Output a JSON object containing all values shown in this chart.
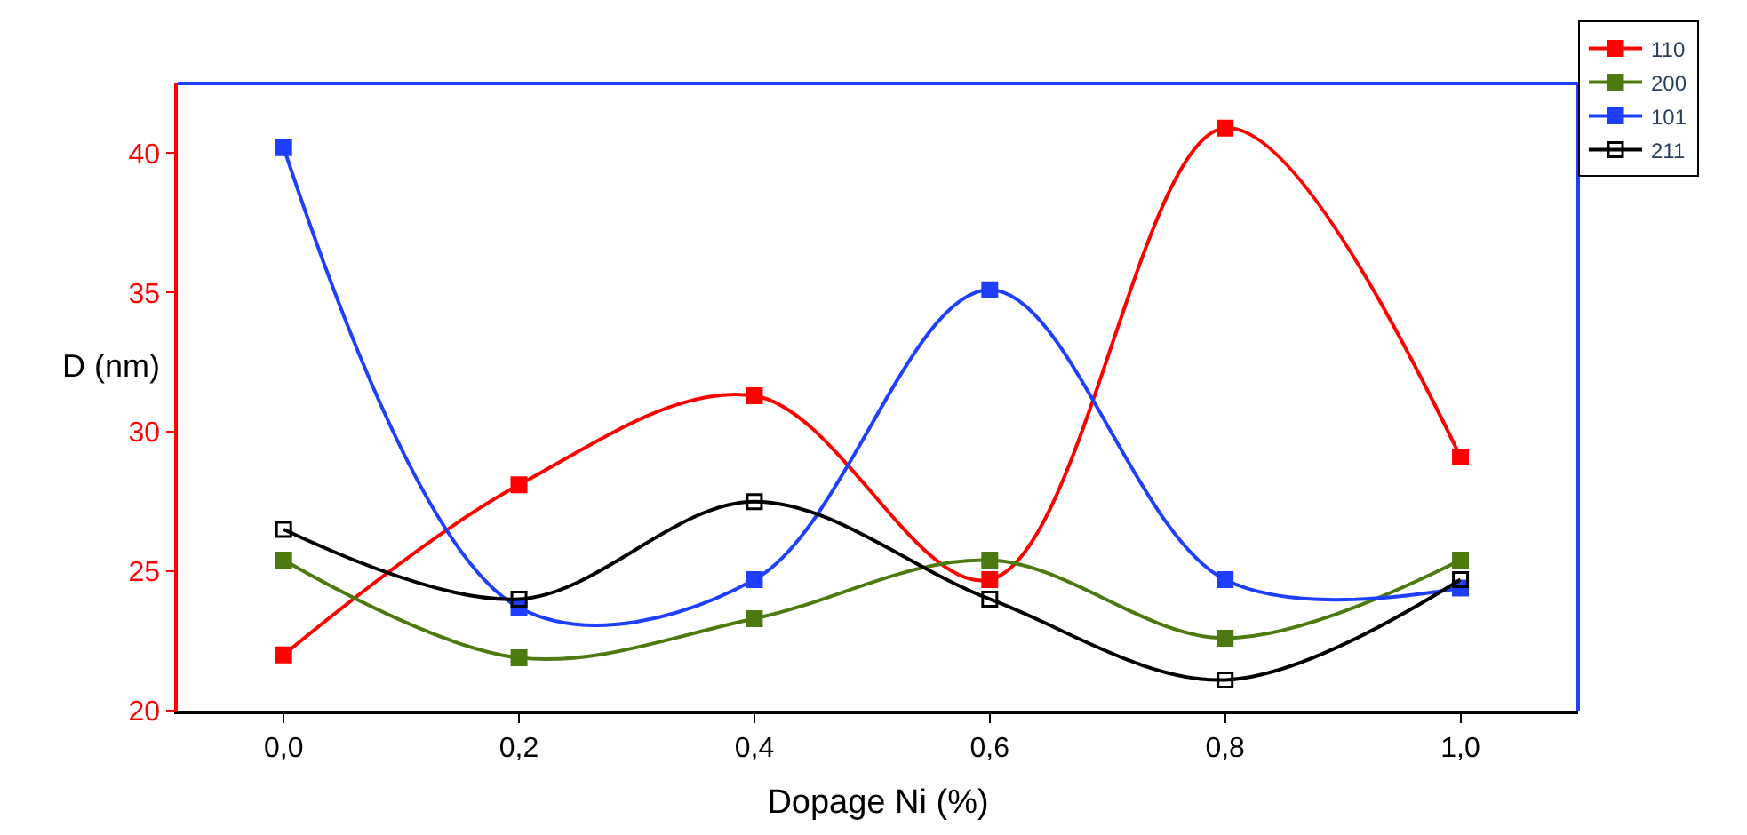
{
  "chart_data": {
    "type": "line",
    "xlabel": "Dopage Ni (%)",
    "ylabel": "D (nm)",
    "x": [
      0.0,
      0.2,
      0.4,
      0.6,
      0.8,
      1.0
    ],
    "series": [
      {
        "name": "110",
        "color": "#ff0000",
        "values": [
          22.0,
          28.1,
          31.3,
          24.7,
          40.9,
          29.1
        ]
      },
      {
        "name": "200",
        "color": "#4d7a0f",
        "values": [
          25.4,
          21.9,
          23.3,
          25.4,
          22.6,
          25.4
        ]
      },
      {
        "name": "101",
        "color": "#1f3fff",
        "values": [
          40.2,
          23.7,
          24.7,
          35.1,
          24.7,
          24.4
        ]
      },
      {
        "name": "211",
        "color": "#000000",
        "marker": "square-open",
        "values": [
          26.5,
          24.0,
          27.5,
          24.0,
          21.1,
          24.7
        ]
      }
    ],
    "xlim": [
      -0.09,
      1.1
    ],
    "xticks": [
      {
        "value": 0.0,
        "label": "0,0"
      },
      {
        "value": 0.2,
        "label": "0,2"
      },
      {
        "value": 0.4,
        "label": "0,4"
      },
      {
        "value": 0.6,
        "label": "0,6"
      },
      {
        "value": 0.8,
        "label": "0,8"
      },
      {
        "value": 1.0,
        "label": "1,0"
      }
    ],
    "ylim": [
      20,
      42.5
    ],
    "yticks": [
      20,
      25,
      30,
      35,
      40
    ],
    "legend": "top right",
    "marker": "square",
    "line_style": "solid"
  }
}
